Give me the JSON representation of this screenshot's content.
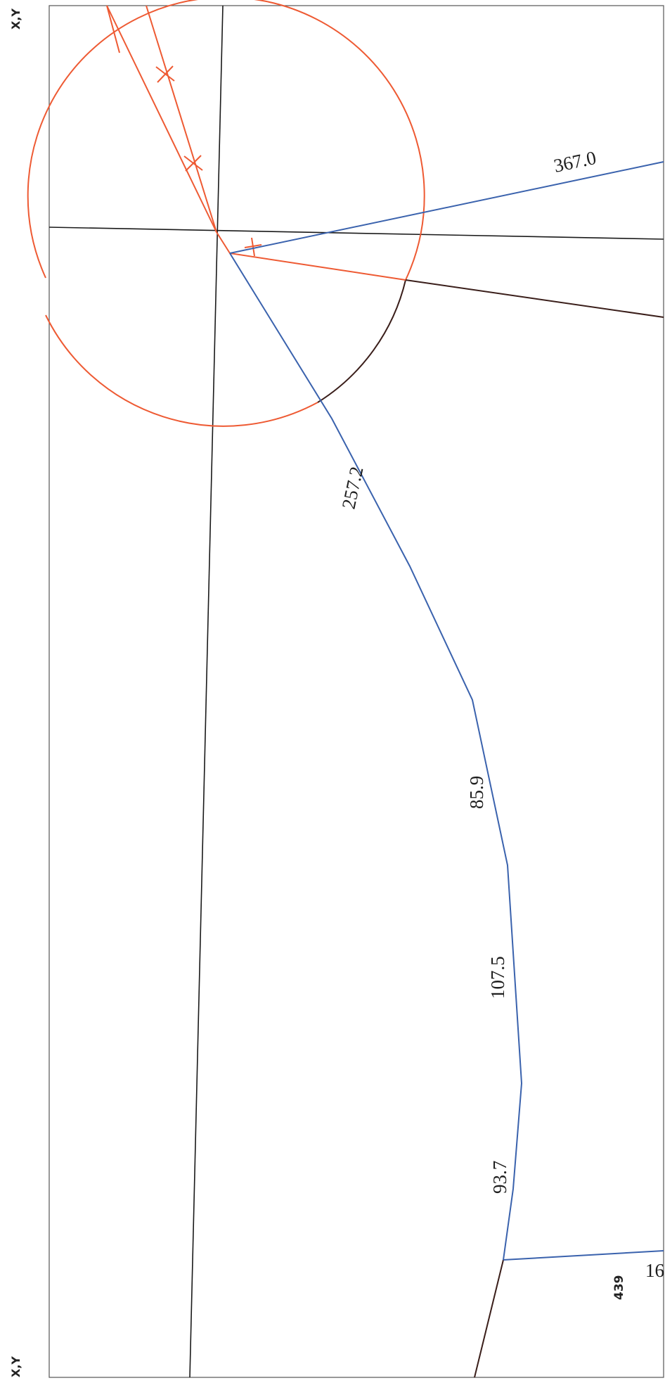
{
  "corner_labels": {
    "top": "X,Y",
    "bottom": "X,Y"
  },
  "page_number": "439",
  "dimensions": {
    "top_blue_line": "367.0",
    "blue_upper": "257.2",
    "blue_seg_1": "85.9",
    "blue_seg_2": "107.5",
    "blue_seg_3": "93.7",
    "bottom_blue_line": "16"
  },
  "colors": {
    "red": "#ee5a33",
    "blue": "#3a62ad",
    "dark": "#3a1e1a",
    "black": "#1a1a1a"
  }
}
